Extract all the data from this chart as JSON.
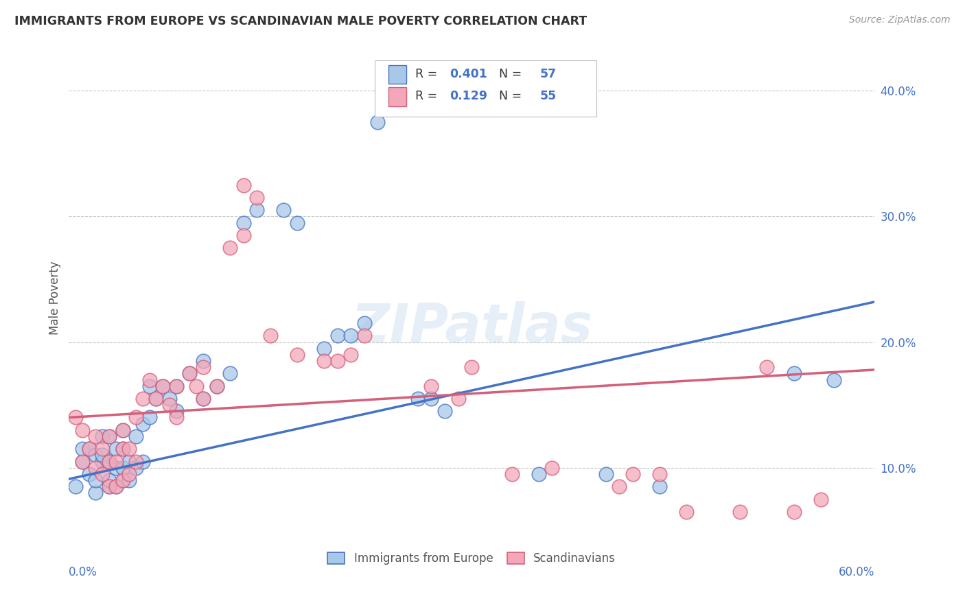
{
  "title": "IMMIGRANTS FROM EUROPE VS SCANDINAVIAN MALE POVERTY CORRELATION CHART",
  "source": "Source: ZipAtlas.com",
  "ylabel": "Male Poverty",
  "xlim": [
    0.0,
    0.6
  ],
  "ylim": [
    0.04,
    0.43
  ],
  "yticks": [
    0.1,
    0.2,
    0.3,
    0.4
  ],
  "ytick_labels": [
    "10.0%",
    "20.0%",
    "30.0%",
    "40.0%"
  ],
  "legend_labels": [
    "Immigrants from Europe",
    "Scandinavians"
  ],
  "R_europe": 0.401,
  "N_europe": 57,
  "R_scand": 0.129,
  "N_scand": 55,
  "color_europe": "#a8c8e8",
  "color_europe_line": "#4472c4",
  "color_scand": "#f4a7b9",
  "color_scand_line": "#d45f7a",
  "watermark": "ZIPatlas",
  "background_color": "#ffffff",
  "grid_color": "#c8c8c8",
  "label_color": "#4472c4",
  "europe_x": [
    0.005,
    0.01,
    0.01,
    0.015,
    0.015,
    0.02,
    0.02,
    0.02,
    0.025,
    0.025,
    0.025,
    0.03,
    0.03,
    0.03,
    0.03,
    0.035,
    0.035,
    0.035,
    0.04,
    0.04,
    0.04,
    0.04,
    0.045,
    0.045,
    0.05,
    0.05,
    0.055,
    0.055,
    0.06,
    0.06,
    0.065,
    0.07,
    0.075,
    0.08,
    0.08,
    0.09,
    0.1,
    0.1,
    0.11,
    0.12,
    0.13,
    0.14,
    0.16,
    0.17,
    0.19,
    0.2,
    0.21,
    0.22,
    0.23,
    0.26,
    0.27,
    0.28,
    0.35,
    0.4,
    0.44,
    0.54,
    0.57
  ],
  "europe_y": [
    0.085,
    0.105,
    0.115,
    0.095,
    0.115,
    0.08,
    0.09,
    0.11,
    0.105,
    0.11,
    0.125,
    0.085,
    0.09,
    0.105,
    0.125,
    0.085,
    0.1,
    0.115,
    0.09,
    0.1,
    0.115,
    0.13,
    0.09,
    0.105,
    0.1,
    0.125,
    0.105,
    0.135,
    0.14,
    0.165,
    0.155,
    0.165,
    0.155,
    0.145,
    0.165,
    0.175,
    0.155,
    0.185,
    0.165,
    0.175,
    0.295,
    0.305,
    0.305,
    0.295,
    0.195,
    0.205,
    0.205,
    0.215,
    0.375,
    0.155,
    0.155,
    0.145,
    0.095,
    0.095,
    0.085,
    0.175,
    0.17
  ],
  "scand_x": [
    0.005,
    0.01,
    0.01,
    0.015,
    0.02,
    0.02,
    0.025,
    0.025,
    0.03,
    0.03,
    0.03,
    0.035,
    0.035,
    0.04,
    0.04,
    0.04,
    0.045,
    0.045,
    0.05,
    0.05,
    0.055,
    0.06,
    0.065,
    0.07,
    0.075,
    0.08,
    0.08,
    0.09,
    0.095,
    0.1,
    0.1,
    0.11,
    0.12,
    0.13,
    0.13,
    0.14,
    0.15,
    0.17,
    0.19,
    0.2,
    0.21,
    0.22,
    0.27,
    0.29,
    0.3,
    0.33,
    0.36,
    0.41,
    0.42,
    0.44,
    0.46,
    0.5,
    0.52,
    0.54,
    0.56
  ],
  "scand_y": [
    0.14,
    0.105,
    0.13,
    0.115,
    0.1,
    0.125,
    0.095,
    0.115,
    0.085,
    0.105,
    0.125,
    0.085,
    0.105,
    0.09,
    0.115,
    0.13,
    0.095,
    0.115,
    0.105,
    0.14,
    0.155,
    0.17,
    0.155,
    0.165,
    0.15,
    0.14,
    0.165,
    0.175,
    0.165,
    0.155,
    0.18,
    0.165,
    0.275,
    0.285,
    0.325,
    0.315,
    0.205,
    0.19,
    0.185,
    0.185,
    0.19,
    0.205,
    0.165,
    0.155,
    0.18,
    0.095,
    0.1,
    0.085,
    0.095,
    0.095,
    0.065,
    0.065,
    0.18,
    0.065,
    0.075
  ],
  "line_europe_x0": 0.0,
  "line_europe_y0": 0.091,
  "line_europe_x1": 0.6,
  "line_europe_y1": 0.232,
  "line_scand_x0": 0.0,
  "line_scand_y0": 0.14,
  "line_scand_x1": 0.6,
  "line_scand_y1": 0.178
}
